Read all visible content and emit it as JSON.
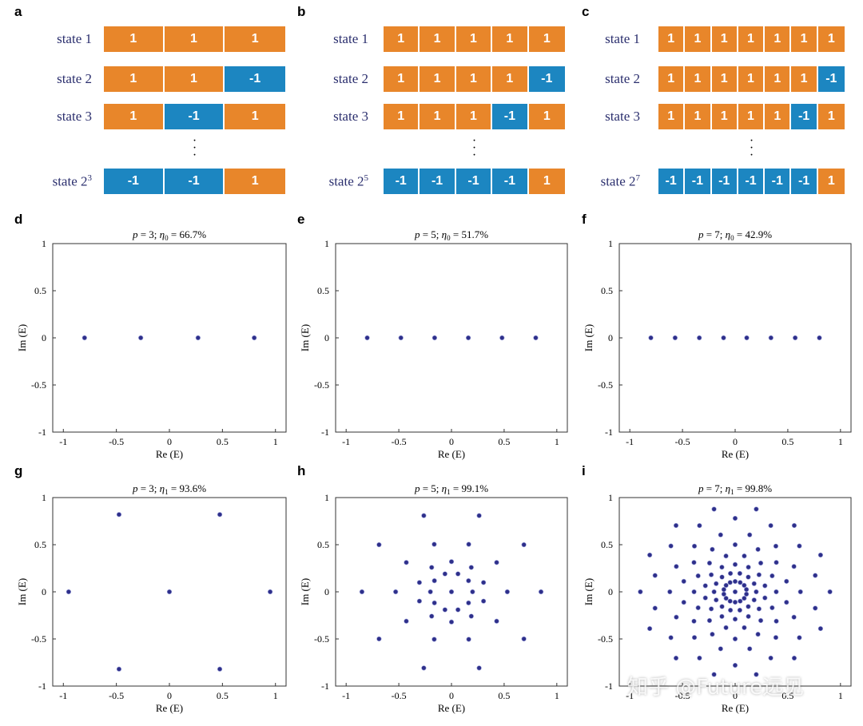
{
  "panel_letters": [
    "a",
    "b",
    "c",
    "d",
    "e",
    "f",
    "g",
    "h",
    "i"
  ],
  "colors": {
    "orange": "#e8862a",
    "blue": "#1c86c1",
    "marker": "#2e2f8a",
    "label": "#2b2f6e"
  },
  "state_panels": [
    {
      "rows": [
        {
          "label": "state 1",
          "cells": [
            "1",
            "1",
            "1"
          ]
        },
        {
          "label": "state 2",
          "cells": [
            "1",
            "1",
            "-1"
          ]
        },
        {
          "label": "state 3",
          "cells": [
            "1",
            "-1",
            "1"
          ]
        },
        {
          "label": "state 2",
          "sup": "3",
          "cells": [
            "-1",
            "-1",
            "1"
          ]
        }
      ]
    },
    {
      "rows": [
        {
          "label": "state 1",
          "cells": [
            "1",
            "1",
            "1",
            "1",
            "1"
          ]
        },
        {
          "label": "state 2",
          "cells": [
            "1",
            "1",
            "1",
            "1",
            "-1"
          ]
        },
        {
          "label": "state 3",
          "cells": [
            "1",
            "1",
            "1",
            "-1",
            "1"
          ]
        },
        {
          "label": "state 2",
          "sup": "5",
          "cells": [
            "-1",
            "-1",
            "-1",
            "-1",
            "1"
          ]
        }
      ]
    },
    {
      "rows": [
        {
          "label": "state 1",
          "cells": [
            "1",
            "1",
            "1",
            "1",
            "1",
            "1",
            "1"
          ]
        },
        {
          "label": "state 2",
          "cells": [
            "1",
            "1",
            "1",
            "1",
            "1",
            "1",
            "-1"
          ]
        },
        {
          "label": "state 3",
          "cells": [
            "1",
            "1",
            "1",
            "1",
            "1",
            "-1",
            "1"
          ]
        },
        {
          "label": "state 2",
          "sup": "7",
          "cells": [
            "-1",
            "-1",
            "-1",
            "-1",
            "-1",
            "-1",
            "1"
          ]
        }
      ]
    }
  ],
  "watermark": "知乎 @Future远见",
  "chart_data": [
    {
      "panel": "d",
      "type": "scatter",
      "title": "p = 3;  η0 = 66.7%",
      "title_parts": {
        "p": "3",
        "eta_sub": "0",
        "value": "66.7%"
      },
      "xlabel": "Re (E)",
      "ylabel": "Im (E)",
      "xlim": [
        -1.1,
        1.1
      ],
      "ylim": [
        -1,
        1
      ],
      "xticks": [
        "-1",
        "-0.5",
        "0",
        "0.5",
        "1"
      ],
      "yticks": [
        "-1",
        "-0.5",
        "0",
        "0.5",
        "1"
      ],
      "rings": [],
      "points": [
        [
          -0.8,
          0
        ],
        [
          -0.27,
          0
        ],
        [
          0.27,
          0
        ],
        [
          0.8,
          0
        ]
      ]
    },
    {
      "panel": "e",
      "type": "scatter",
      "title": "p = 5;  η0 = 51.7%",
      "title_parts": {
        "p": "5",
        "eta_sub": "0",
        "value": "51.7%"
      },
      "xlabel": "Re (E)",
      "ylabel": "Im (E)",
      "xlim": [
        -1.1,
        1.1
      ],
      "ylim": [
        -1,
        1
      ],
      "xticks": [
        "-1",
        "-0.5",
        "0",
        "0.5",
        "1"
      ],
      "yticks": [
        "-1",
        "-0.5",
        "0",
        "0.5",
        "1"
      ],
      "rings": [],
      "points": [
        [
          -0.8,
          0
        ],
        [
          -0.48,
          0
        ],
        [
          -0.16,
          0
        ],
        [
          0.16,
          0
        ],
        [
          0.48,
          0
        ],
        [
          0.8,
          0
        ]
      ]
    },
    {
      "panel": "f",
      "type": "scatter",
      "title": "p = 7;  η0 = 42.9%",
      "title_parts": {
        "p": "7",
        "eta_sub": "0",
        "value": "42.9%"
      },
      "xlabel": "Re (E)",
      "ylabel": "Im (E)",
      "xlim": [
        -1.1,
        1.1
      ],
      "ylim": [
        -1,
        1
      ],
      "xticks": [
        "-1",
        "-0.5",
        "0",
        "0.5",
        "1"
      ],
      "yticks": [
        "-1",
        "-0.5",
        "0",
        "0.5",
        "1"
      ],
      "rings": [],
      "points": [
        [
          -0.8,
          0
        ],
        [
          -0.57,
          0
        ],
        [
          -0.34,
          0
        ],
        [
          -0.11,
          0
        ],
        [
          0.11,
          0
        ],
        [
          0.34,
          0
        ],
        [
          0.57,
          0
        ],
        [
          0.8,
          0
        ]
      ]
    },
    {
      "panel": "g",
      "type": "scatter",
      "title": "p = 3;  η1 = 93.6%",
      "title_parts": {
        "p": "3",
        "eta_sub": "1",
        "value": "93.6%"
      },
      "xlabel": "Re (E)",
      "ylabel": "Im (E)",
      "xlim": [
        -1.1,
        1.1
      ],
      "ylim": [
        -1,
        1
      ],
      "xticks": [
        "-1",
        "-0.5",
        "0",
        "0.5",
        "1"
      ],
      "yticks": [
        "-1",
        "-0.5",
        "0",
        "0.5",
        "1"
      ],
      "rings": [],
      "points": [
        [
          0,
          0
        ],
        [
          -0.95,
          0
        ],
        [
          0.95,
          0
        ],
        [
          -0.475,
          0.82
        ],
        [
          0.475,
          0.82
        ],
        [
          -0.475,
          -0.82
        ],
        [
          0.475,
          -0.82
        ]
      ]
    },
    {
      "panel": "h",
      "type": "scatter",
      "title": "p = 5;  η1 = 99.1%",
      "title_parts": {
        "p": "5",
        "eta_sub": "1",
        "value": "99.1%"
      },
      "xlabel": "Re (E)",
      "ylabel": "Im (E)",
      "xlim": [
        -1.1,
        1.1
      ],
      "ylim": [
        -1,
        1
      ],
      "xticks": [
        "-1",
        "-0.5",
        "0",
        "0.5",
        "1"
      ],
      "yticks": [
        "-1",
        "-0.5",
        "0",
        "0.5",
        "1"
      ],
      "rings": [
        {
          "r": 0.85,
          "count": 10,
          "offset_deg": 0
        },
        {
          "r": 0.53,
          "count": 10,
          "offset_deg": 0
        },
        {
          "r": 0.32,
          "count": 10,
          "offset_deg": 18
        },
        {
          "r": 0.2,
          "count": 10,
          "offset_deg": 0
        }
      ],
      "points": [
        [
          0,
          0
        ]
      ]
    },
    {
      "panel": "i",
      "type": "scatter",
      "title": "p = 7;  η1 = 99.8%",
      "title_parts": {
        "p": "7",
        "eta_sub": "1",
        "value": "99.8%"
      },
      "xlabel": "Re (E)",
      "ylabel": "Im (E)",
      "xlim": [
        -1.1,
        1.1
      ],
      "ylim": [
        -1,
        1
      ],
      "xticks": [
        "-1",
        "-0.5",
        "0",
        "0.5",
        "1"
      ],
      "yticks": [
        "-1",
        "-0.5",
        "0",
        "0.5",
        "1"
      ],
      "rings": [
        {
          "r": 0.9,
          "count": 14,
          "offset_deg": 0
        },
        {
          "r": 0.78,
          "count": 14,
          "offset_deg": 12.86
        },
        {
          "r": 0.62,
          "count": 14,
          "offset_deg": 0
        },
        {
          "r": 0.5,
          "count": 14,
          "offset_deg": 12.86
        },
        {
          "r": 0.39,
          "count": 14,
          "offset_deg": 0
        },
        {
          "r": 0.29,
          "count": 14,
          "offset_deg": 12.86
        },
        {
          "r": 0.2,
          "count": 14,
          "offset_deg": 0
        },
        {
          "r": 0.11,
          "count": 14,
          "offset_deg": 12.86
        }
      ],
      "points": [
        [
          0,
          0
        ]
      ]
    }
  ]
}
